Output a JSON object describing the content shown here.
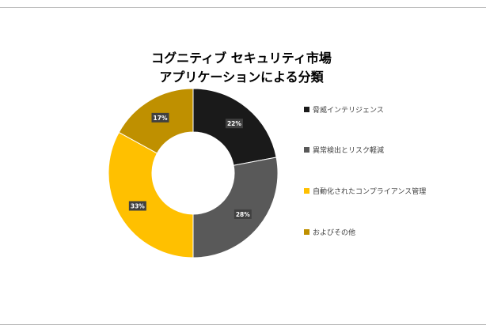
{
  "chart_data": {
    "type": "pie",
    "title_line1": "コグニティブ セキュリティ市場",
    "title_line2": "アプリケーションによる分類",
    "categories": [
      "脅威インテリジェンス",
      "異常検出とリスク軽減",
      "自動化されたコンプライアンス管理",
      "およびその他"
    ],
    "values": [
      22,
      28,
      33,
      17
    ],
    "labels": [
      "22%",
      "28%",
      "33%",
      "17%"
    ],
    "colors": [
      "#1a1a1a",
      "#595959",
      "#ffc000",
      "#bf9000"
    ],
    "donut": true,
    "legend_position": "right"
  }
}
